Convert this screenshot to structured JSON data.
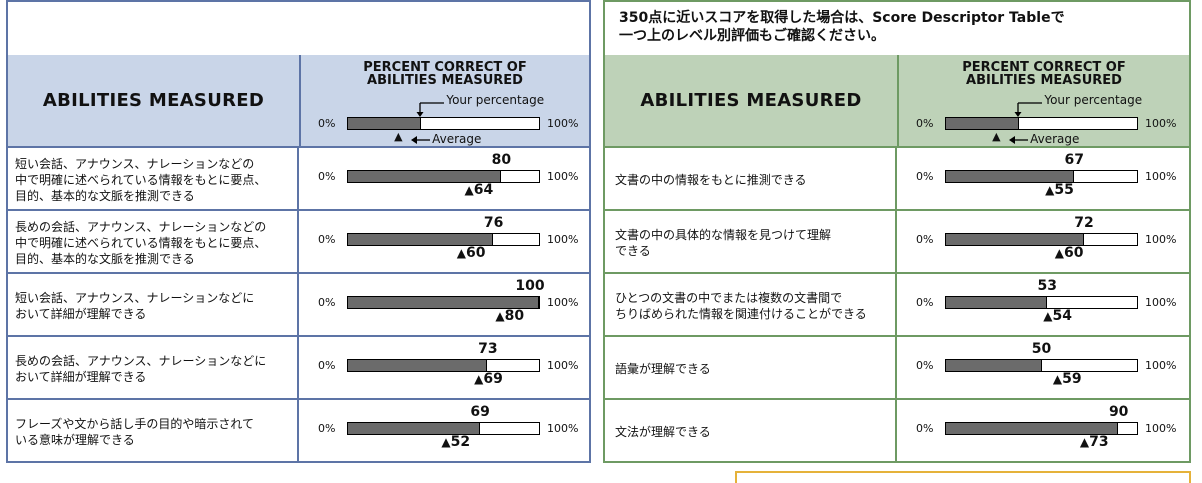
{
  "left": {
    "header_title": "ABILITIES MEASURED",
    "pct_header": [
      "PERCENT CORRECT OF",
      "ABILITIES MEASURED"
    ],
    "legend": {
      "your": "Your percentage",
      "average": "Average",
      "zero": "0%",
      "hundred": "100%"
    },
    "legend_example": {
      "your_fraction": 0.38,
      "average_fraction": 0.27
    },
    "rows": [
      {
        "label": "短い会話、アナウンス、ナレーションなどの\n中で明確に述べられている情報をもとに要点、\n目的、基本的な文脈を推測できる",
        "your": 80,
        "average": 64
      },
      {
        "label": "長めの会話、アナウンス、ナレーションなどの\n中で明確に述べられている情報をもとに要点、\n目的、基本的な文脈を推測できる",
        "your": 76,
        "average": 60
      },
      {
        "label": "短い会話、アナウンス、ナレーションなどに\nおいて詳細が理解できる",
        "your": 100,
        "average": 80
      },
      {
        "label": "長めの会話、アナウンス、ナレーションなどに\nおいて詳細が理解できる",
        "your": 73,
        "average": 69
      },
      {
        "label": "フレーズや文から話し手の目的や暗示されて\nいる意味が理解できる",
        "your": 69,
        "average": 52
      }
    ]
  },
  "right": {
    "note": "350点に近いスコアを取得した場合は、Score Descriptor Tableで\n一つ上のレベル別評価もご確認ください。",
    "header_title": "ABILITIES MEASURED",
    "pct_header": [
      "PERCENT CORRECT OF",
      "ABILITIES MEASURED"
    ],
    "legend": {
      "your": "Your percentage",
      "average": "Average",
      "zero": "0%",
      "hundred": "100%"
    },
    "legend_example": {
      "your_fraction": 0.38,
      "average_fraction": 0.27
    },
    "rows": [
      {
        "label": "文書の中の情報をもとに推測できる",
        "your": 67,
        "average": 55
      },
      {
        "label": "文書の中の具体的な情報を見つけて理解\nできる",
        "your": 72,
        "average": 60
      },
      {
        "label": "ひとつの文書の中でまたは複数の文書間で\nちりばめられた情報を関連付けることができる",
        "your": 53,
        "average": 54
      },
      {
        "label": "語彙が理解できる",
        "your": 50,
        "average": 59
      },
      {
        "label": "文法が理解できる",
        "your": 90,
        "average": 73
      }
    ]
  },
  "colors": {
    "left_border": "#5d74a6",
    "left_header": "#c9d5e8",
    "right_border": "#6e9a63",
    "right_header": "#bed2b8",
    "bar_fill": "#6b6b6b",
    "orange": "#e5b23a"
  }
}
